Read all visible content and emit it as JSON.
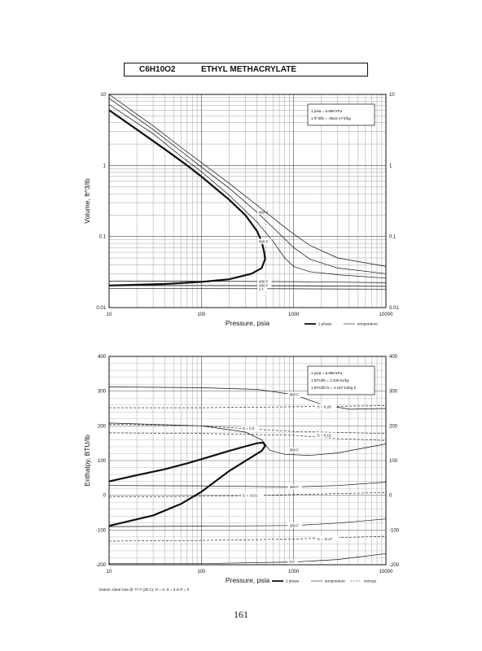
{
  "header": {
    "formula": "C6H10O2",
    "name": "ETHYL METHACRYLATE"
  },
  "page_number": "161",
  "chart_data": [
    {
      "type": "line",
      "scale": {
        "x": "log",
        "y": "log"
      },
      "xlabel": "Pressure,  psia",
      "ylabel": "Volume, ft^3/lb",
      "xlim": [
        10,
        10000
      ],
      "ylim": [
        0.01,
        10
      ],
      "x_ticks": [
        "10",
        "100",
        "1000",
        "10000"
      ],
      "y_ticks": [
        "0.01",
        "0.1",
        "1",
        "10"
      ],
      "right_y_ticks": [
        "0.01",
        "0.1",
        "1",
        "10"
      ],
      "grid": true,
      "conversions": [
        "1 psia  =  6.895 kPa",
        "1 ft^3/lb  =  .0624 m^3/kg"
      ],
      "legend": [
        "2 phase",
        "temperature"
      ],
      "legend_position": "bottom-right",
      "series": [
        {
          "style": "2phase",
          "points": [
            [
              10,
              6.0
            ],
            [
              20,
              3.2
            ],
            [
              40,
              1.7
            ],
            [
              70,
              1.0
            ],
            [
              100,
              0.7
            ],
            [
              150,
              0.45
            ],
            [
              200,
              0.33
            ],
            [
              300,
              0.2
            ],
            [
              400,
              0.12
            ],
            [
              450,
              0.085
            ],
            [
              480,
              0.06
            ],
            [
              490,
              0.048
            ],
            [
              450,
              0.036
            ],
            [
              350,
              0.03
            ],
            [
              200,
              0.025
            ],
            [
              100,
              0.023
            ],
            [
              40,
              0.0215
            ],
            [
              10,
              0.0205
            ]
          ]
        },
        {
          "style": "iso",
          "label": "0 F",
          "points": [
            [
              10,
              0.0185
            ],
            [
              100,
              0.0185
            ],
            [
              1000,
              0.0184
            ],
            [
              10000,
              0.0182
            ]
          ]
        },
        {
          "style": "iso",
          "label": "200 F",
          "points": [
            [
              10,
              0.0205
            ],
            [
              100,
              0.0205
            ],
            [
              1000,
              0.0203
            ],
            [
              10000,
              0.0199
            ]
          ]
        },
        {
          "style": "iso",
          "label": "400 F",
          "points": [
            [
              10,
              0.0235
            ],
            [
              100,
              0.0235
            ],
            [
              1000,
              0.0232
            ],
            [
              10000,
              0.0224
            ]
          ]
        },
        {
          "style": "iso",
          "label": "600 F",
          "points": [
            [
              10,
              7.2
            ],
            [
              30,
              2.8
            ],
            [
              60,
              1.35
            ],
            [
              100,
              0.82
            ],
            [
              200,
              0.38
            ],
            [
              400,
              0.16
            ],
            [
              600,
              0.085
            ],
            [
              800,
              0.05
            ],
            [
              1000,
              0.038
            ],
            [
              1500,
              0.032
            ],
            [
              3000,
              0.029
            ],
            [
              10000,
              0.026
            ]
          ]
        },
        {
          "style": "iso",
          "label": "800 F",
          "points": [
            [
              10,
              8.8
            ],
            [
              30,
              3.2
            ],
            [
              60,
              1.6
            ],
            [
              100,
              0.95
            ],
            [
              200,
              0.48
            ],
            [
              400,
              0.22
            ],
            [
              700,
              0.11
            ],
            [
              1000,
              0.07
            ],
            [
              1500,
              0.048
            ],
            [
              3000,
              0.036
            ],
            [
              10000,
              0.03
            ]
          ]
        },
        {
          "style": "iso",
          "points": [
            [
              10,
              10
            ],
            [
              30,
              3.6
            ],
            [
              60,
              1.8
            ],
            [
              100,
              1.1
            ],
            [
              200,
              0.56
            ],
            [
              500,
              0.22
            ],
            [
              900,
              0.12
            ],
            [
              1500,
              0.075
            ],
            [
              3000,
              0.05
            ],
            [
              10000,
              0.038
            ]
          ]
        }
      ]
    },
    {
      "type": "line",
      "scale": {
        "x": "log",
        "y": "linear"
      },
      "xlabel": "Pressure,  psia",
      "ylabel": "Enthalpy, BTU/lb",
      "xlim": [
        10,
        10000
      ],
      "ylim": [
        -200,
        400
      ],
      "x_ticks": [
        "10",
        "100",
        "1000",
        "10000"
      ],
      "y_ticks": [
        "-200",
        "-100",
        "0",
        "100",
        "200",
        "300",
        "400"
      ],
      "right_y_ticks": [
        "-200",
        "-100",
        "0",
        "100",
        "200",
        "300",
        "400"
      ],
      "grid": true,
      "conversions": [
        "1 psia  =  6.895 kPa",
        "1 BTU/lb  =  2.326 kJ/kg",
        "1 BTU/lb R  =  4.187 kJ/kg K"
      ],
      "footnote": "Datum: Ideal Gas @ 77 F (25 C),  H = 0,  S = 0 in P = 0",
      "legend": [
        "2 phase",
        "temperature",
        "entropy"
      ],
      "legend_position": "bottom-right",
      "series": [
        {
          "style": "2phase",
          "points": [
            [
              10,
              40
            ],
            [
              20,
              58
            ],
            [
              40,
              75
            ],
            [
              70,
              92
            ],
            [
              100,
              104
            ],
            [
              150,
              118
            ],
            [
              200,
              128
            ],
            [
              300,
              141
            ],
            [
              400,
              150
            ],
            [
              470,
              152
            ],
            [
              490,
              142
            ],
            [
              450,
              128
            ],
            [
              350,
              110
            ],
            [
              200,
              70
            ],
            [
              100,
              10
            ],
            [
              60,
              -25
            ],
            [
              30,
              -58
            ],
            [
              10,
              -88
            ]
          ]
        },
        {
          "style": "iso",
          "label": "0 F",
          "points": [
            [
              10,
              -197
            ],
            [
              100,
              -197
            ],
            [
              1000,
              -192
            ],
            [
              3000,
              -185
            ],
            [
              10000,
              -168
            ]
          ]
        },
        {
          "style": "iso",
          "label": "200 F",
          "points": [
            [
              10,
              -90
            ],
            [
              100,
              -89
            ],
            [
              1000,
              -87
            ],
            [
              3000,
              -80
            ],
            [
              10000,
              -68
            ]
          ]
        },
        {
          "style": "iso",
          "label": "400 F",
          "points": [
            [
              10,
              28
            ],
            [
              100,
              27
            ],
            [
              1000,
              24
            ],
            [
              3000,
              28
            ],
            [
              10000,
              38
            ]
          ]
        },
        {
          "style": "iso",
          "label": "600 F",
          "points": [
            [
              10,
              208
            ],
            [
              100,
              200
            ],
            [
              300,
              182
            ],
            [
              450,
              160
            ],
            [
              550,
              130
            ],
            [
              800,
              118
            ],
            [
              1500,
              115
            ],
            [
              3000,
              122
            ],
            [
              10000,
              148
            ]
          ]
        },
        {
          "style": "iso",
          "label": "800 F",
          "points": [
            [
              10,
              312
            ],
            [
              100,
              310
            ],
            [
              400,
              305
            ],
            [
              1000,
              290
            ],
            [
              2000,
              262
            ],
            [
              4000,
              248
            ],
            [
              10000,
              250
            ]
          ]
        },
        {
          "style": "entropy",
          "label": "S = 0.26",
          "points": [
            [
              10,
              252
            ],
            [
              100,
              252
            ],
            [
              1000,
              255
            ],
            [
              10000,
              258
            ]
          ]
        },
        {
          "style": "entropy",
          "label": "S = 0.2",
          "points": [
            [
              10,
              205
            ],
            [
              100,
              200
            ],
            [
              300,
              192
            ],
            [
              1000,
              184
            ],
            [
              10000,
              178
            ]
          ]
        },
        {
          "style": "entropy",
          "label": "S = 0.15",
          "points": [
            [
              10,
              180
            ],
            [
              100,
              178
            ],
            [
              1000,
              173
            ],
            [
              3000,
              163
            ],
            [
              10000,
              158
            ]
          ]
        },
        {
          "style": "entropy",
          "label": "S = -0.01",
          "points": [
            [
              10,
              -5
            ],
            [
              100,
              -3
            ],
            [
              300,
              -1
            ],
            [
              1000,
              2
            ],
            [
              10000,
              8
            ]
          ]
        },
        {
          "style": "entropy",
          "label": "S = -0.17",
          "points": [
            [
              10,
              -132
            ],
            [
              100,
              -130
            ],
            [
              1000,
              -126
            ],
            [
              10000,
              -118
            ]
          ]
        }
      ]
    }
  ]
}
